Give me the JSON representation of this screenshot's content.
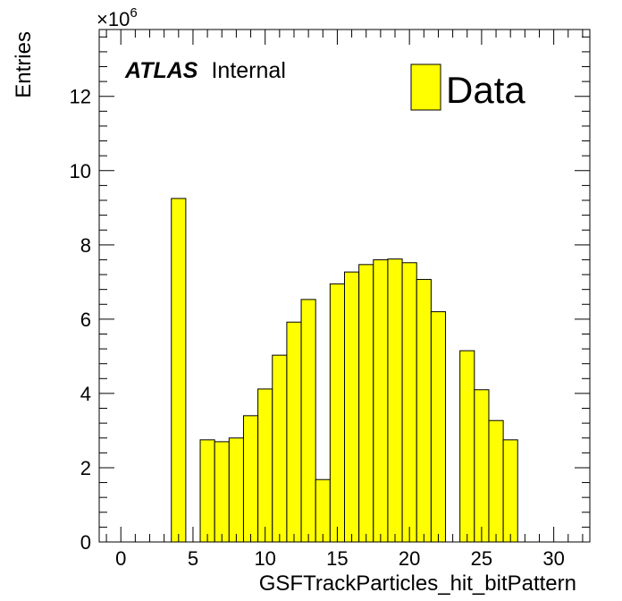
{
  "chart_data": {
    "type": "histogram",
    "title": "",
    "xlabel": "GSFTrackParticles_hit_bitPattern",
    "ylabel": "Entries",
    "xlim": [
      -1.5,
      32.5
    ],
    "ylim": [
      0,
      13.8
    ],
    "y_multiplier_base": "×10",
    "y_multiplier_exp": "6",
    "x_ticks": [
      0,
      5,
      10,
      15,
      20,
      25,
      30
    ],
    "x_tick_labels": [
      "0",
      "5",
      "10",
      "15",
      "20",
      "25",
      "30"
    ],
    "y_ticks": [
      0,
      2,
      4,
      6,
      8,
      10,
      12
    ],
    "y_tick_labels": [
      "0",
      "2",
      "4",
      "6",
      "8",
      "10",
      "12"
    ],
    "bin_width": 1,
    "bins": [
      {
        "x": 4,
        "value": 9.25
      },
      {
        "x": 5,
        "value": 0
      },
      {
        "x": 6,
        "value": 2.75
      },
      {
        "x": 7,
        "value": 2.7
      },
      {
        "x": 8,
        "value": 2.8
      },
      {
        "x": 9,
        "value": 3.4
      },
      {
        "x": 10,
        "value": 4.12
      },
      {
        "x": 11,
        "value": 5.03
      },
      {
        "x": 12,
        "value": 5.92
      },
      {
        "x": 13,
        "value": 6.53
      },
      {
        "x": 14,
        "value": 1.68
      },
      {
        "x": 15,
        "value": 6.95
      },
      {
        "x": 16,
        "value": 7.27
      },
      {
        "x": 17,
        "value": 7.47
      },
      {
        "x": 18,
        "value": 7.6
      },
      {
        "x": 19,
        "value": 7.62
      },
      {
        "x": 20,
        "value": 7.52
      },
      {
        "x": 21,
        "value": 7.07
      },
      {
        "x": 22,
        "value": 6.2
      },
      {
        "x": 23,
        "value": 0
      },
      {
        "x": 24,
        "value": 5.15
      },
      {
        "x": 25,
        "value": 4.1
      },
      {
        "x": 26,
        "value": 3.27
      },
      {
        "x": 27,
        "value": 2.75
      }
    ],
    "fill_color": "#ffff00",
    "line_color": "#000000",
    "legend": {
      "label": "Data",
      "placement": "top-right"
    },
    "annotation": {
      "bold": "ATLAS",
      "normal": "Internal"
    },
    "grid": false
  }
}
